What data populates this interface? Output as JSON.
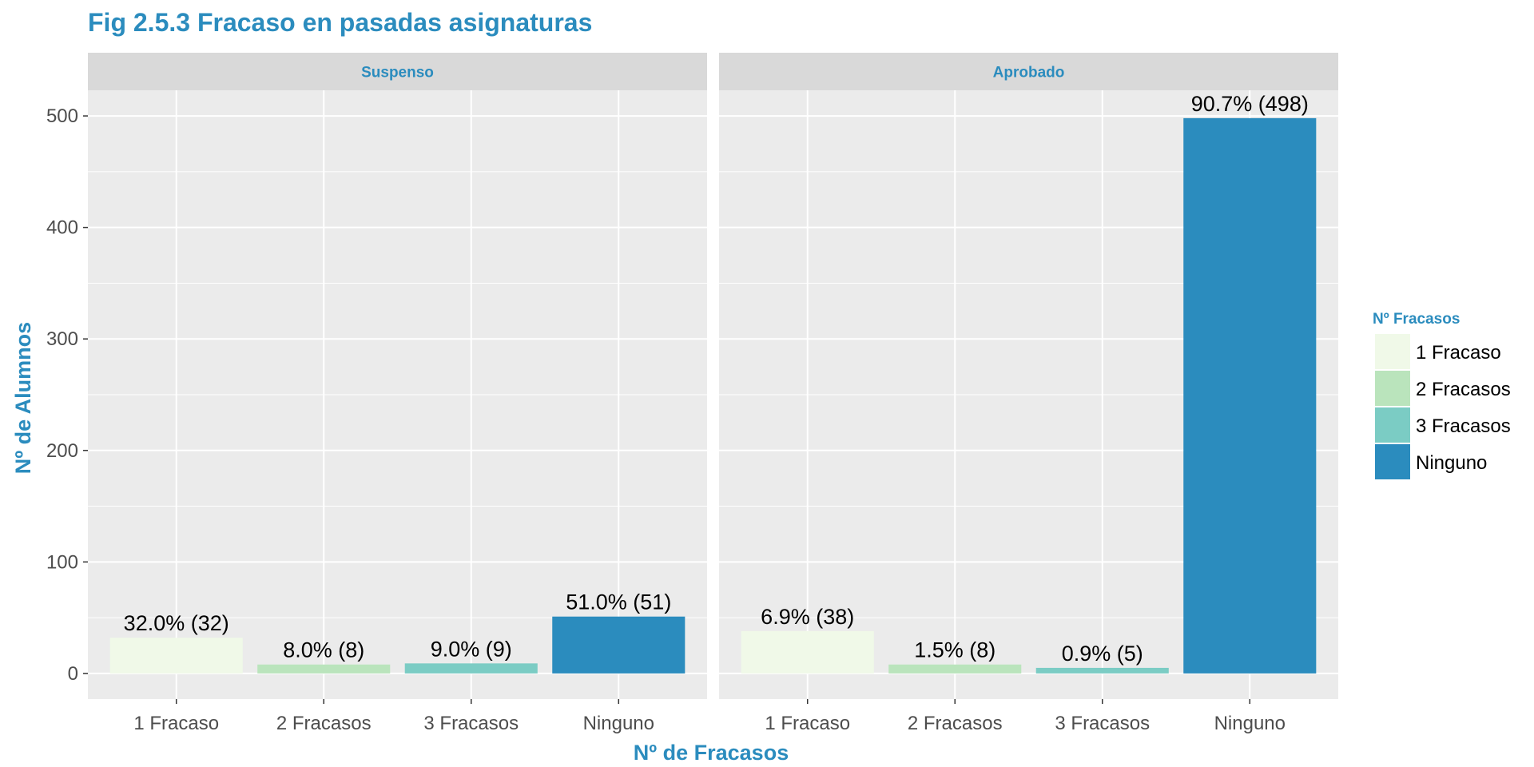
{
  "chart_data": {
    "type": "bar",
    "title": "Fig 2.5.3 Fracaso en pasadas asignaturas",
    "xlabel": "Nº de Fracasos",
    "ylabel": "Nº de Alumnos",
    "categories": [
      "1 Fracaso",
      "2 Fracasos",
      "3 Fracasos",
      "Ninguno"
    ],
    "ylim": [
      -23,
      523
    ],
    "yticks": [
      0,
      100,
      200,
      300,
      400,
      500
    ],
    "grid": true,
    "legend": {
      "title": "Nº Fracasos",
      "position": "right",
      "entries": [
        "1 Fracaso",
        "2 Fracasos",
        "3 Fracasos",
        "Ninguno"
      ]
    },
    "colors": {
      "1 Fracaso": "#f0f9e8",
      "2 Fracasos": "#bae4bc",
      "3 Fracasos": "#7bccc4",
      "Ninguno": "#2b8cbe",
      "accent": "#2b8cbe",
      "panel": "#ebebeb",
      "strip": "#d9d9d9"
    },
    "panels": [
      {
        "name": "Suspenso",
        "values": [
          32,
          8,
          9,
          51
        ],
        "labels": [
          "32.0% (32)",
          "8.0% (8)",
          "9.0% (9)",
          "51.0% (51)"
        ]
      },
      {
        "name": "Aprobado",
        "values": [
          38,
          8,
          5,
          498
        ],
        "labels": [
          "6.9% (38)",
          "1.5% (8)",
          "0.9% (5)",
          "90.7% (498)"
        ]
      }
    ]
  }
}
